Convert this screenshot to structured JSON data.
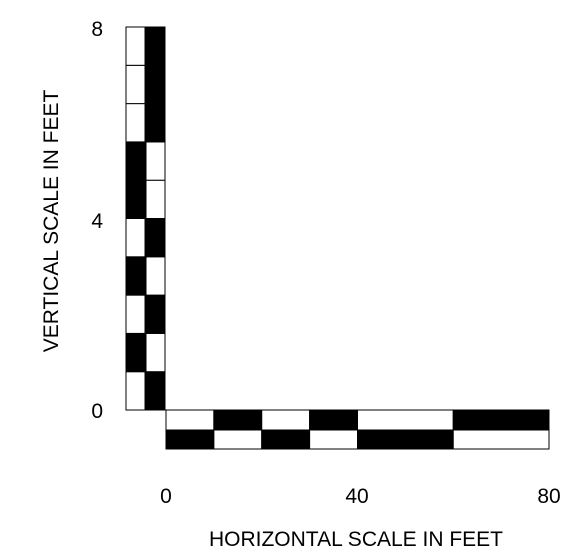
{
  "vertical_scale": {
    "label": "VERTICAL SCALE IN FEET",
    "ticks": [
      "0",
      "4",
      "8"
    ],
    "range": [
      0,
      8
    ],
    "left_column_pattern": [
      0,
      1,
      0,
      1,
      0,
      1,
      1,
      0,
      0,
      0
    ],
    "right_column_pattern": [
      1,
      0,
      1,
      0,
      1,
      0,
      0,
      1,
      1,
      1
    ]
  },
  "horizontal_scale": {
    "label": "HORIZONTAL SCALE IN FEET",
    "ticks": [
      "0",
      "40",
      "80"
    ],
    "range": [
      0,
      80
    ],
    "top_row_segments": [
      {
        "from": 0,
        "to": 10,
        "color": "white"
      },
      {
        "from": 10,
        "to": 20,
        "color": "black"
      },
      {
        "from": 20,
        "to": 30,
        "color": "white"
      },
      {
        "from": 30,
        "to": 40,
        "color": "black"
      },
      {
        "from": 40,
        "to": 60,
        "color": "white"
      },
      {
        "from": 60,
        "to": 80,
        "color": "black"
      }
    ],
    "bottom_row_segments": [
      {
        "from": 0,
        "to": 10,
        "color": "black"
      },
      {
        "from": 10,
        "to": 20,
        "color": "white"
      },
      {
        "from": 20,
        "to": 30,
        "color": "black"
      },
      {
        "from": 30,
        "to": 40,
        "color": "white"
      },
      {
        "from": 40,
        "to": 60,
        "color": "black"
      },
      {
        "from": 60,
        "to": 80,
        "color": "white"
      }
    ]
  },
  "colors": {
    "fill": "#000000",
    "background": "#ffffff",
    "stroke": "#000000"
  }
}
